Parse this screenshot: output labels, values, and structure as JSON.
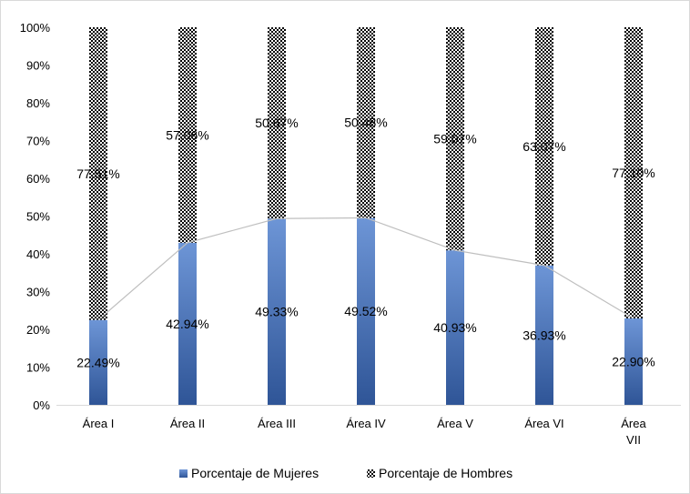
{
  "chart_data": {
    "type": "bar",
    "stacked": true,
    "title": "",
    "xlabel": "",
    "ylabel": "",
    "ylim": [
      0,
      100
    ],
    "yticks": [
      "0%",
      "10%",
      "20%",
      "30%",
      "40%",
      "50%",
      "60%",
      "70%",
      "80%",
      "90%",
      "100%"
    ],
    "categories": [
      [
        "Área  I"
      ],
      [
        "Área II"
      ],
      [
        "Área III"
      ],
      [
        "Área IV"
      ],
      [
        "Área V"
      ],
      [
        "Área VI"
      ],
      [
        "Área",
        "VII"
      ]
    ],
    "series": [
      {
        "name": "Porcentaje de Mujeres",
        "values": [
          22.49,
          42.94,
          49.33,
          49.52,
          40.93,
          36.93,
          22.9
        ],
        "labels": [
          "22.49%",
          "42.94%",
          "49.33%",
          "49.52%",
          "40.93%",
          "36.93%",
          "22.90%"
        ],
        "color": "#4472c4",
        "fill": "gradient"
      },
      {
        "name": "Porcentaje de Hombres",
        "values": [
          77.51,
          57.06,
          50.67,
          50.48,
          59.07,
          63.07,
          77.1
        ],
        "labels": [
          "77.51%",
          "57.06%",
          "50.67%",
          "50.48%",
          "59.07%",
          "63.07%",
          "77.10%"
        ],
        "color": "#000000",
        "fill": "checkerboard"
      }
    ],
    "connector_line": {
      "color": "#bfbfbf"
    },
    "gridlines": false,
    "legend": "bottom"
  }
}
